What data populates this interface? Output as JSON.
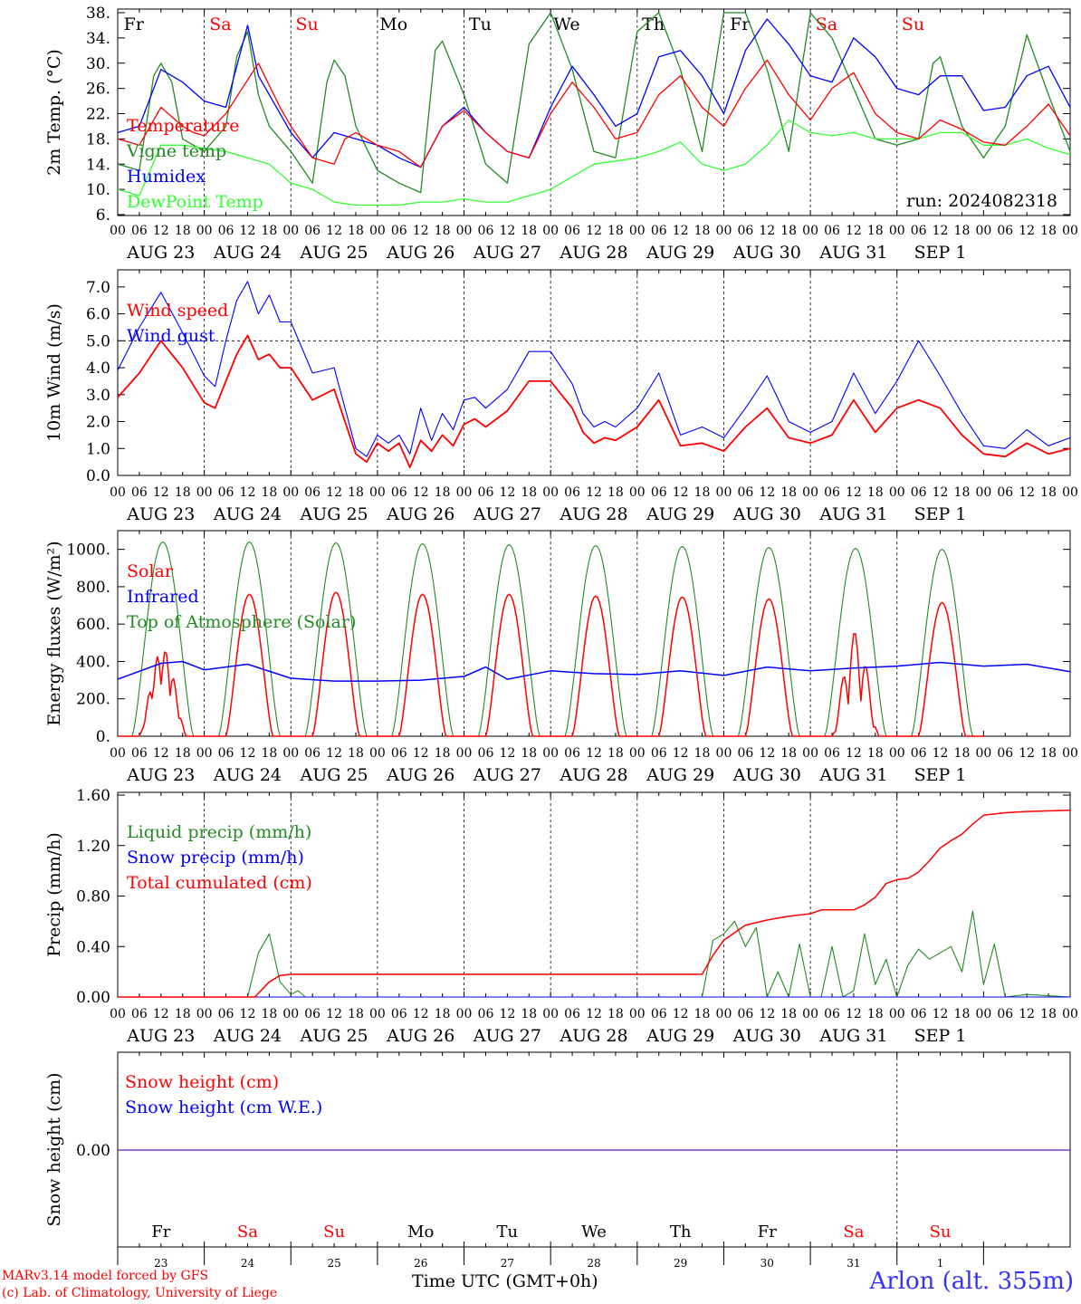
{
  "colors": {
    "red": "#ff0000",
    "green": "#228b22",
    "lightgreen": "#33ff33",
    "blue": "#0000ff",
    "purple": "#7f3fbf",
    "black": "#000000"
  },
  "days": [
    {
      "abbr": "Fr",
      "date": "AUG 23",
      "num": "23",
      "weekend": false
    },
    {
      "abbr": "Sa",
      "date": "AUG 24",
      "num": "24",
      "weekend": true
    },
    {
      "abbr": "Su",
      "date": "AUG 25",
      "num": "25",
      "weekend": true
    },
    {
      "abbr": "Mo",
      "date": "AUG 26",
      "num": "26",
      "weekend": false
    },
    {
      "abbr": "Tu",
      "date": "AUG 27",
      "num": "27",
      "weekend": false
    },
    {
      "abbr": "We",
      "date": "AUG 28",
      "num": "28",
      "weekend": false
    },
    {
      "abbr": "Th",
      "date": "AUG 29",
      "num": "29",
      "weekend": false
    },
    {
      "abbr": "Fr",
      "date": "AUG 30",
      "num": "30",
      "weekend": false
    },
    {
      "abbr": "Sa",
      "date": "AUG 31",
      "num": "31",
      "weekend": true
    },
    {
      "abbr": "Su",
      "date": "SEP  1",
      "num": "1",
      "weekend": true
    }
  ],
  "hour_ticks": [
    "00",
    "06",
    "12",
    "18"
  ],
  "run_label": "run: 2024082318",
  "footer": {
    "credit_line1": "MARv3.14 model forced by GFS",
    "credit_line2": "(c) Lab. of Climatology, University of Liege",
    "xlabel": "Time UTC (GMT+0h)",
    "station": "Arlon (alt. 355m)"
  },
  "chart_data": [
    {
      "type": "line",
      "ylabel": "2m Temp. (°C)",
      "ylim": [
        6,
        38
      ],
      "yticks": [
        "6.",
        "10.",
        "14.",
        "18.",
        "22.",
        "26.",
        "30.",
        "34.",
        "38."
      ],
      "x_unit": "hours since AUG 23 00 UTC",
      "series": [
        {
          "name": "Temperature",
          "color": "red",
          "x": [
            0,
            6,
            12,
            15,
            18,
            21,
            24,
            30,
            39,
            45,
            48,
            54,
            60,
            63,
            66,
            72,
            78,
            84,
            90,
            96,
            102,
            108,
            114,
            120,
            126,
            132,
            138,
            144,
            150,
            156,
            162,
            168,
            174,
            180,
            186,
            192,
            198,
            204,
            210,
            216,
            222,
            228,
            234,
            240,
            246,
            252,
            258,
            264
          ],
          "y": [
            18,
            17,
            23,
            21.5,
            20,
            19,
            18.5,
            22,
            30,
            23,
            20,
            15,
            14,
            18,
            19,
            17,
            16,
            13.5,
            20,
            22.5,
            19,
            16,
            15,
            22,
            27,
            23,
            18,
            19,
            25,
            28,
            23,
            20,
            26,
            30.5,
            25,
            21,
            26,
            28.5,
            22,
            19,
            18,
            21,
            19.5,
            17.5,
            17,
            20,
            23.5,
            18.5
          ]
        },
        {
          "name": "Vigne temp",
          "color": "green",
          "x": [
            0,
            6,
            10,
            12,
            15,
            18,
            21,
            24,
            30,
            33,
            36,
            39,
            42,
            48,
            54,
            58,
            60,
            63,
            66,
            72,
            78,
            84,
            88,
            90,
            96,
            102,
            108,
            114,
            120,
            126,
            132,
            138,
            144,
            150,
            156,
            162,
            168,
            174,
            180,
            186,
            192,
            198,
            204,
            210,
            216,
            222,
            226,
            228,
            234,
            240,
            246,
            252,
            258,
            264
          ],
          "y": [
            14,
            13,
            28,
            30,
            27,
            18,
            17,
            16,
            20,
            31,
            35,
            25,
            20,
            16,
            11,
            27,
            30.5,
            28,
            20,
            13,
            11,
            9.5,
            32,
            33.5,
            25,
            14,
            11,
            33,
            38,
            29,
            16,
            15,
            35,
            38,
            29,
            16,
            38,
            38,
            29,
            16,
            38,
            34,
            26,
            18,
            17,
            18,
            30,
            31,
            20,
            15,
            20,
            34.5,
            25,
            16
          ]
        },
        {
          "name": "Humidex",
          "color": "blue",
          "x": [
            0,
            6,
            12,
            18,
            24,
            30,
            36,
            39,
            42,
            48,
            54,
            60,
            66,
            72,
            78,
            84,
            90,
            96,
            102,
            108,
            114,
            120,
            126,
            132,
            138,
            144,
            150,
            156,
            162,
            168,
            174,
            180,
            186,
            192,
            198,
            204,
            210,
            216,
            222,
            228,
            234,
            240,
            246,
            252,
            258,
            264
          ],
          "y": [
            19,
            20,
            29,
            27,
            24,
            23,
            36,
            28,
            25,
            19,
            15,
            19,
            18,
            17,
            15,
            13.5,
            20,
            23,
            19,
            16,
            15,
            23,
            29.5,
            25,
            20,
            22,
            31,
            32,
            28,
            22,
            32,
            37,
            33,
            28,
            27,
            34,
            31,
            26,
            25,
            28,
            28,
            22.5,
            23,
            28,
            29.5,
            23
          ]
        },
        {
          "name": "DewPoint Temp",
          "color": "lightgreen",
          "x": [
            0,
            6,
            12,
            18,
            24,
            30,
            36,
            42,
            48,
            54,
            60,
            66,
            72,
            78,
            84,
            90,
            96,
            102,
            108,
            114,
            120,
            126,
            132,
            138,
            144,
            150,
            156,
            162,
            168,
            174,
            180,
            186,
            192,
            198,
            204,
            210,
            216,
            222,
            228,
            234,
            240,
            246,
            252,
            258,
            264
          ],
          "y": [
            10,
            9,
            17,
            17,
            16.5,
            16,
            15,
            14,
            11,
            10,
            8,
            7.5,
            7.5,
            7.5,
            8,
            8,
            8.5,
            8,
            8,
            9,
            10,
            12,
            14,
            14.5,
            15,
            16,
            17.5,
            14,
            13,
            14,
            17,
            21,
            19,
            18.5,
            19,
            18,
            18,
            18,
            19,
            19,
            17,
            17,
            18,
            16.5,
            15.5
          ]
        }
      ]
    },
    {
      "type": "line",
      "ylabel": "10m Wind (m/s)",
      "ylim": [
        0,
        7.5
      ],
      "yticks": [
        "0.0",
        "1.0",
        "2.0",
        "3.0",
        "4.0",
        "5.0",
        "6.0",
        "7.0"
      ],
      "reference_line": 5.0,
      "series": [
        {
          "name": "Wind speed",
          "color": "red",
          "x": [
            0,
            6,
            12,
            18,
            24,
            27,
            30,
            33,
            36,
            39,
            42,
            45,
            48,
            54,
            60,
            66,
            69,
            72,
            75,
            78,
            81,
            84,
            87,
            90,
            93,
            96,
            99,
            102,
            108,
            114,
            120,
            126,
            129,
            132,
            135,
            138,
            144,
            150,
            156,
            162,
            168,
            174,
            180,
            186,
            192,
            198,
            204,
            210,
            216,
            222,
            228,
            234,
            240,
            246,
            252,
            258,
            264
          ],
          "y": [
            2.9,
            3.8,
            5.0,
            4.0,
            2.7,
            2.5,
            3.5,
            4.5,
            5.2,
            4.3,
            4.5,
            4.0,
            4.0,
            2.8,
            3.2,
            0.8,
            0.5,
            1.2,
            0.9,
            1.2,
            0.3,
            1.3,
            0.9,
            1.5,
            1.1,
            1.9,
            2.1,
            1.8,
            2.4,
            3.5,
            3.5,
            2.5,
            1.6,
            1.2,
            1.4,
            1.3,
            1.8,
            2.8,
            1.1,
            1.2,
            0.9,
            1.8,
            2.5,
            1.4,
            1.2,
            1.5,
            2.8,
            1.6,
            2.5,
            2.8,
            2.5,
            1.5,
            0.8,
            0.7,
            1.2,
            0.8,
            1.0
          ]
        },
        {
          "name": "Wind gust",
          "color": "blue",
          "x": [
            0,
            6,
            12,
            18,
            24,
            27,
            30,
            33,
            36,
            39,
            42,
            45,
            48,
            54,
            60,
            66,
            69,
            72,
            75,
            78,
            81,
            84,
            87,
            90,
            93,
            96,
            99,
            102,
            108,
            114,
            120,
            126,
            129,
            132,
            135,
            138,
            144,
            150,
            156,
            162,
            168,
            174,
            180,
            186,
            192,
            198,
            204,
            210,
            216,
            222,
            228,
            234,
            240,
            246,
            252,
            258,
            264
          ],
          "y": [
            3.9,
            5.5,
            6.8,
            5.3,
            3.7,
            3.3,
            5.0,
            6.5,
            7.2,
            6.0,
            6.7,
            5.7,
            5.7,
            3.8,
            4.0,
            1.0,
            0.7,
            1.5,
            1.2,
            1.5,
            0.8,
            2.5,
            1.3,
            2.3,
            1.7,
            2.8,
            2.9,
            2.5,
            3.2,
            4.6,
            4.6,
            3.4,
            2.3,
            1.8,
            2.0,
            1.8,
            2.5,
            3.8,
            1.5,
            1.8,
            1.4,
            2.5,
            3.7,
            2.0,
            1.6,
            2.0,
            3.8,
            2.3,
            3.5,
            5.0,
            3.7,
            2.3,
            1.1,
            1.0,
            1.7,
            1.1,
            1.4
          ]
        }
      ]
    },
    {
      "type": "line",
      "ylabel": "Energy fluxes (W/m²)",
      "ylim": [
        0,
        1100
      ],
      "yticks": [
        "0.",
        "200.",
        "400.",
        "600.",
        "800.",
        "1000."
      ],
      "series": [
        {
          "name": "Solar",
          "color": "red",
          "diurnal_peaks": [
            470,
            760,
            770,
            760,
            760,
            750,
            745,
            735,
            560,
            715
          ]
        },
        {
          "name": "Infrared",
          "color": "blue",
          "x": [
            0,
            12,
            18,
            24,
            36,
            48,
            60,
            72,
            84,
            96,
            102,
            108,
            120,
            132,
            144,
            156,
            168,
            180,
            192,
            204,
            216,
            228,
            240,
            252,
            264
          ],
          "y": [
            305,
            390,
            400,
            355,
            385,
            310,
            295,
            295,
            300,
            320,
            370,
            305,
            350,
            335,
            330,
            350,
            325,
            370,
            350,
            365,
            375,
            395,
            375,
            385,
            345
          ]
        },
        {
          "name": "Top of Atmosphere (Solar)",
          "color": "green",
          "diurnal_peaks": [
            1040,
            1040,
            1035,
            1030,
            1025,
            1020,
            1015,
            1010,
            1005,
            1000
          ]
        }
      ]
    },
    {
      "type": "line",
      "ylabel": "Precip (mm/h)",
      "ylim": [
        0,
        1.6
      ],
      "yticks": [
        "0.00",
        "0.40",
        "0.80",
        "1.20",
        "1.60"
      ],
      "series": [
        {
          "name": "Liquid precip (mm/h)",
          "color": "green",
          "x": [
            0,
            36,
            39,
            42,
            45,
            48,
            50,
            52,
            54,
            60,
            132,
            144,
            150,
            156,
            162,
            165,
            168,
            171,
            174,
            177,
            180,
            183,
            186,
            189,
            192,
            195,
            198,
            201,
            204,
            207,
            210,
            213,
            216,
            219,
            222,
            225,
            228,
            231,
            234,
            237,
            240,
            243,
            246,
            252,
            258,
            264
          ],
          "y": [
            0,
            0,
            0.35,
            0.5,
            0.12,
            0.02,
            0.05,
            0,
            0,
            0,
            0,
            0,
            0,
            0,
            0,
            0.45,
            0.5,
            0.6,
            0.4,
            0.55,
            0,
            0.2,
            0,
            0.42,
            0,
            0,
            0.4,
            0,
            0.05,
            0.5,
            0.1,
            0.3,
            0,
            0.25,
            0.38,
            0.3,
            0.35,
            0.4,
            0.2,
            0.68,
            0.1,
            0.42,
            0,
            0.02,
            0.01,
            0
          ]
        },
        {
          "name": "Snow precip (mm/h)",
          "color": "blue",
          "x": [
            0,
            264
          ],
          "y": [
            0,
            0
          ]
        },
        {
          "name": "Total cumulated (cm)",
          "color": "red",
          "x": [
            0,
            38,
            42,
            45,
            48,
            54,
            60,
            132,
            156,
            162,
            165,
            168,
            174,
            180,
            186,
            192,
            195,
            198,
            201,
            204,
            207,
            210,
            213,
            216,
            219,
            222,
            225,
            228,
            231,
            234,
            237,
            240,
            246,
            252,
            264
          ],
          "y": [
            0,
            0,
            0.12,
            0.17,
            0.18,
            0.18,
            0.18,
            0.18,
            0.18,
            0.18,
            0.33,
            0.45,
            0.57,
            0.61,
            0.64,
            0.66,
            0.69,
            0.69,
            0.69,
            0.69,
            0.73,
            0.79,
            0.9,
            0.93,
            0.94,
            0.99,
            1.08,
            1.18,
            1.24,
            1.29,
            1.37,
            1.44,
            1.46,
            1.47,
            1.48
          ]
        }
      ]
    },
    {
      "type": "line",
      "ylabel": "Snow height (cm)",
      "yticks": [
        "0.00"
      ],
      "series": [
        {
          "name": "Snow height (cm)",
          "color": "red",
          "x": [
            0,
            264
          ],
          "y": [
            0,
            0
          ]
        },
        {
          "name": "Snow height (cm W.E.)",
          "color": "blue",
          "x": [
            0,
            264
          ],
          "y": [
            0,
            0
          ]
        }
      ]
    }
  ]
}
